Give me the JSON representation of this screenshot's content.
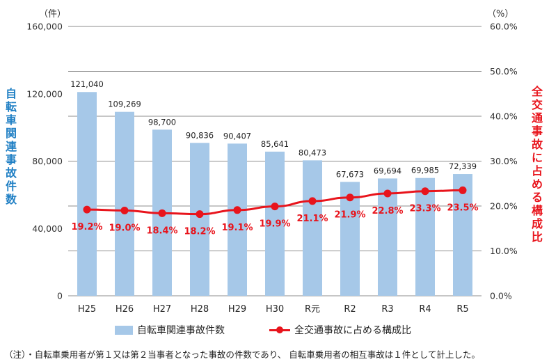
{
  "chart_data": {
    "type": "bar+line",
    "categories": [
      "H25",
      "H26",
      "H27",
      "H28",
      "H29",
      "H30",
      "R元",
      "R2",
      "R3",
      "R4",
      "R5"
    ],
    "series": [
      {
        "name": "自転車関連事故件数",
        "type": "bar",
        "axis": "left",
        "color": "#a6c8e8",
        "values": [
          121040,
          109269,
          98700,
          90836,
          90407,
          85641,
          80473,
          67673,
          69694,
          69985,
          72339
        ],
        "labels": [
          "121,040",
          "109,269",
          "98,700",
          "90,836",
          "90,407",
          "85,641",
          "80,473",
          "67,673",
          "69,694",
          "69,985",
          "72,339"
        ]
      },
      {
        "name": "全交通事故に占める構成比",
        "type": "line",
        "axis": "right",
        "color": "#e8141c",
        "values": [
          19.2,
          19.0,
          18.4,
          18.2,
          19.1,
          19.9,
          21.1,
          21.9,
          22.8,
          23.3,
          23.5
        ],
        "labels": [
          "19.2%",
          "19.0%",
          "18.4%",
          "18.2%",
          "19.1%",
          "19.9%",
          "21.1%",
          "21.9%",
          "22.8%",
          "23.3%",
          "23.5%"
        ]
      }
    ],
    "y_left": {
      "label": "自転車関連事故件数",
      "unit": "（件）",
      "range": [
        0,
        160000
      ],
      "ticks": [
        0,
        40000,
        80000,
        120000,
        160000
      ],
      "tick_labels": [
        "0",
        "40,000",
        "80,000",
        "120,000",
        "160,000"
      ]
    },
    "y_right": {
      "label": "全交通事故に占める構成比",
      "unit": "（%）",
      "range": [
        0,
        60
      ],
      "ticks": [
        0,
        10,
        20,
        30,
        40,
        50,
        60
      ],
      "tick_labels": [
        "0.0%",
        "10.0%",
        "20.0%",
        "30.0%",
        "40.0%",
        "50.0%",
        "60.0%"
      ]
    },
    "grid": "horizontal",
    "legend_position": "bottom"
  },
  "note": "（注）・自転車乗用者が第１又は第２当事者となった事故の件数であり、 自転車乗用者の相互事故は１件として計上した。",
  "colors": {
    "left_axis_label": "#1f7fc4",
    "right_axis_label": "#e8141c",
    "grid": "#8c8c8c"
  }
}
